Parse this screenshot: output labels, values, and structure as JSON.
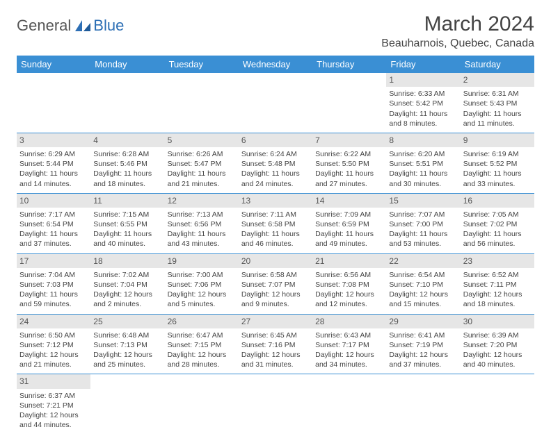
{
  "logo": {
    "general": "General",
    "blue": "Blue"
  },
  "title": "March 2024",
  "location": "Beauharnois, Quebec, Canada",
  "colors": {
    "header_bg": "#3a8fd4",
    "header_fg": "#ffffff",
    "day_bg": "#e6e6e6",
    "border": "#3a8fd4",
    "logo_blue": "#2d6fb5"
  },
  "daysOfWeek": [
    "Sunday",
    "Monday",
    "Tuesday",
    "Wednesday",
    "Thursday",
    "Friday",
    "Saturday"
  ],
  "weeks": [
    [
      null,
      null,
      null,
      null,
      null,
      {
        "n": "1",
        "sr": "Sunrise: 6:33 AM",
        "ss": "Sunset: 5:42 PM",
        "d1": "Daylight: 11 hours",
        "d2": "and 8 minutes."
      },
      {
        "n": "2",
        "sr": "Sunrise: 6:31 AM",
        "ss": "Sunset: 5:43 PM",
        "d1": "Daylight: 11 hours",
        "d2": "and 11 minutes."
      }
    ],
    [
      {
        "n": "3",
        "sr": "Sunrise: 6:29 AM",
        "ss": "Sunset: 5:44 PM",
        "d1": "Daylight: 11 hours",
        "d2": "and 14 minutes."
      },
      {
        "n": "4",
        "sr": "Sunrise: 6:28 AM",
        "ss": "Sunset: 5:46 PM",
        "d1": "Daylight: 11 hours",
        "d2": "and 18 minutes."
      },
      {
        "n": "5",
        "sr": "Sunrise: 6:26 AM",
        "ss": "Sunset: 5:47 PM",
        "d1": "Daylight: 11 hours",
        "d2": "and 21 minutes."
      },
      {
        "n": "6",
        "sr": "Sunrise: 6:24 AM",
        "ss": "Sunset: 5:48 PM",
        "d1": "Daylight: 11 hours",
        "d2": "and 24 minutes."
      },
      {
        "n": "7",
        "sr": "Sunrise: 6:22 AM",
        "ss": "Sunset: 5:50 PM",
        "d1": "Daylight: 11 hours",
        "d2": "and 27 minutes."
      },
      {
        "n": "8",
        "sr": "Sunrise: 6:20 AM",
        "ss": "Sunset: 5:51 PM",
        "d1": "Daylight: 11 hours",
        "d2": "and 30 minutes."
      },
      {
        "n": "9",
        "sr": "Sunrise: 6:19 AM",
        "ss": "Sunset: 5:52 PM",
        "d1": "Daylight: 11 hours",
        "d2": "and 33 minutes."
      }
    ],
    [
      {
        "n": "10",
        "sr": "Sunrise: 7:17 AM",
        "ss": "Sunset: 6:54 PM",
        "d1": "Daylight: 11 hours",
        "d2": "and 37 minutes."
      },
      {
        "n": "11",
        "sr": "Sunrise: 7:15 AM",
        "ss": "Sunset: 6:55 PM",
        "d1": "Daylight: 11 hours",
        "d2": "and 40 minutes."
      },
      {
        "n": "12",
        "sr": "Sunrise: 7:13 AM",
        "ss": "Sunset: 6:56 PM",
        "d1": "Daylight: 11 hours",
        "d2": "and 43 minutes."
      },
      {
        "n": "13",
        "sr": "Sunrise: 7:11 AM",
        "ss": "Sunset: 6:58 PM",
        "d1": "Daylight: 11 hours",
        "d2": "and 46 minutes."
      },
      {
        "n": "14",
        "sr": "Sunrise: 7:09 AM",
        "ss": "Sunset: 6:59 PM",
        "d1": "Daylight: 11 hours",
        "d2": "and 49 minutes."
      },
      {
        "n": "15",
        "sr": "Sunrise: 7:07 AM",
        "ss": "Sunset: 7:00 PM",
        "d1": "Daylight: 11 hours",
        "d2": "and 53 minutes."
      },
      {
        "n": "16",
        "sr": "Sunrise: 7:05 AM",
        "ss": "Sunset: 7:02 PM",
        "d1": "Daylight: 11 hours",
        "d2": "and 56 minutes."
      }
    ],
    [
      {
        "n": "17",
        "sr": "Sunrise: 7:04 AM",
        "ss": "Sunset: 7:03 PM",
        "d1": "Daylight: 11 hours",
        "d2": "and 59 minutes."
      },
      {
        "n": "18",
        "sr": "Sunrise: 7:02 AM",
        "ss": "Sunset: 7:04 PM",
        "d1": "Daylight: 12 hours",
        "d2": "and 2 minutes."
      },
      {
        "n": "19",
        "sr": "Sunrise: 7:00 AM",
        "ss": "Sunset: 7:06 PM",
        "d1": "Daylight: 12 hours",
        "d2": "and 5 minutes."
      },
      {
        "n": "20",
        "sr": "Sunrise: 6:58 AM",
        "ss": "Sunset: 7:07 PM",
        "d1": "Daylight: 12 hours",
        "d2": "and 9 minutes."
      },
      {
        "n": "21",
        "sr": "Sunrise: 6:56 AM",
        "ss": "Sunset: 7:08 PM",
        "d1": "Daylight: 12 hours",
        "d2": "and 12 minutes."
      },
      {
        "n": "22",
        "sr": "Sunrise: 6:54 AM",
        "ss": "Sunset: 7:10 PM",
        "d1": "Daylight: 12 hours",
        "d2": "and 15 minutes."
      },
      {
        "n": "23",
        "sr": "Sunrise: 6:52 AM",
        "ss": "Sunset: 7:11 PM",
        "d1": "Daylight: 12 hours",
        "d2": "and 18 minutes."
      }
    ],
    [
      {
        "n": "24",
        "sr": "Sunrise: 6:50 AM",
        "ss": "Sunset: 7:12 PM",
        "d1": "Daylight: 12 hours",
        "d2": "and 21 minutes."
      },
      {
        "n": "25",
        "sr": "Sunrise: 6:48 AM",
        "ss": "Sunset: 7:13 PM",
        "d1": "Daylight: 12 hours",
        "d2": "and 25 minutes."
      },
      {
        "n": "26",
        "sr": "Sunrise: 6:47 AM",
        "ss": "Sunset: 7:15 PM",
        "d1": "Daylight: 12 hours",
        "d2": "and 28 minutes."
      },
      {
        "n": "27",
        "sr": "Sunrise: 6:45 AM",
        "ss": "Sunset: 7:16 PM",
        "d1": "Daylight: 12 hours",
        "d2": "and 31 minutes."
      },
      {
        "n": "28",
        "sr": "Sunrise: 6:43 AM",
        "ss": "Sunset: 7:17 PM",
        "d1": "Daylight: 12 hours",
        "d2": "and 34 minutes."
      },
      {
        "n": "29",
        "sr": "Sunrise: 6:41 AM",
        "ss": "Sunset: 7:19 PM",
        "d1": "Daylight: 12 hours",
        "d2": "and 37 minutes."
      },
      {
        "n": "30",
        "sr": "Sunrise: 6:39 AM",
        "ss": "Sunset: 7:20 PM",
        "d1": "Daylight: 12 hours",
        "d2": "and 40 minutes."
      }
    ],
    [
      {
        "n": "31",
        "sr": "Sunrise: 6:37 AM",
        "ss": "Sunset: 7:21 PM",
        "d1": "Daylight: 12 hours",
        "d2": "and 44 minutes."
      },
      null,
      null,
      null,
      null,
      null,
      null
    ]
  ]
}
